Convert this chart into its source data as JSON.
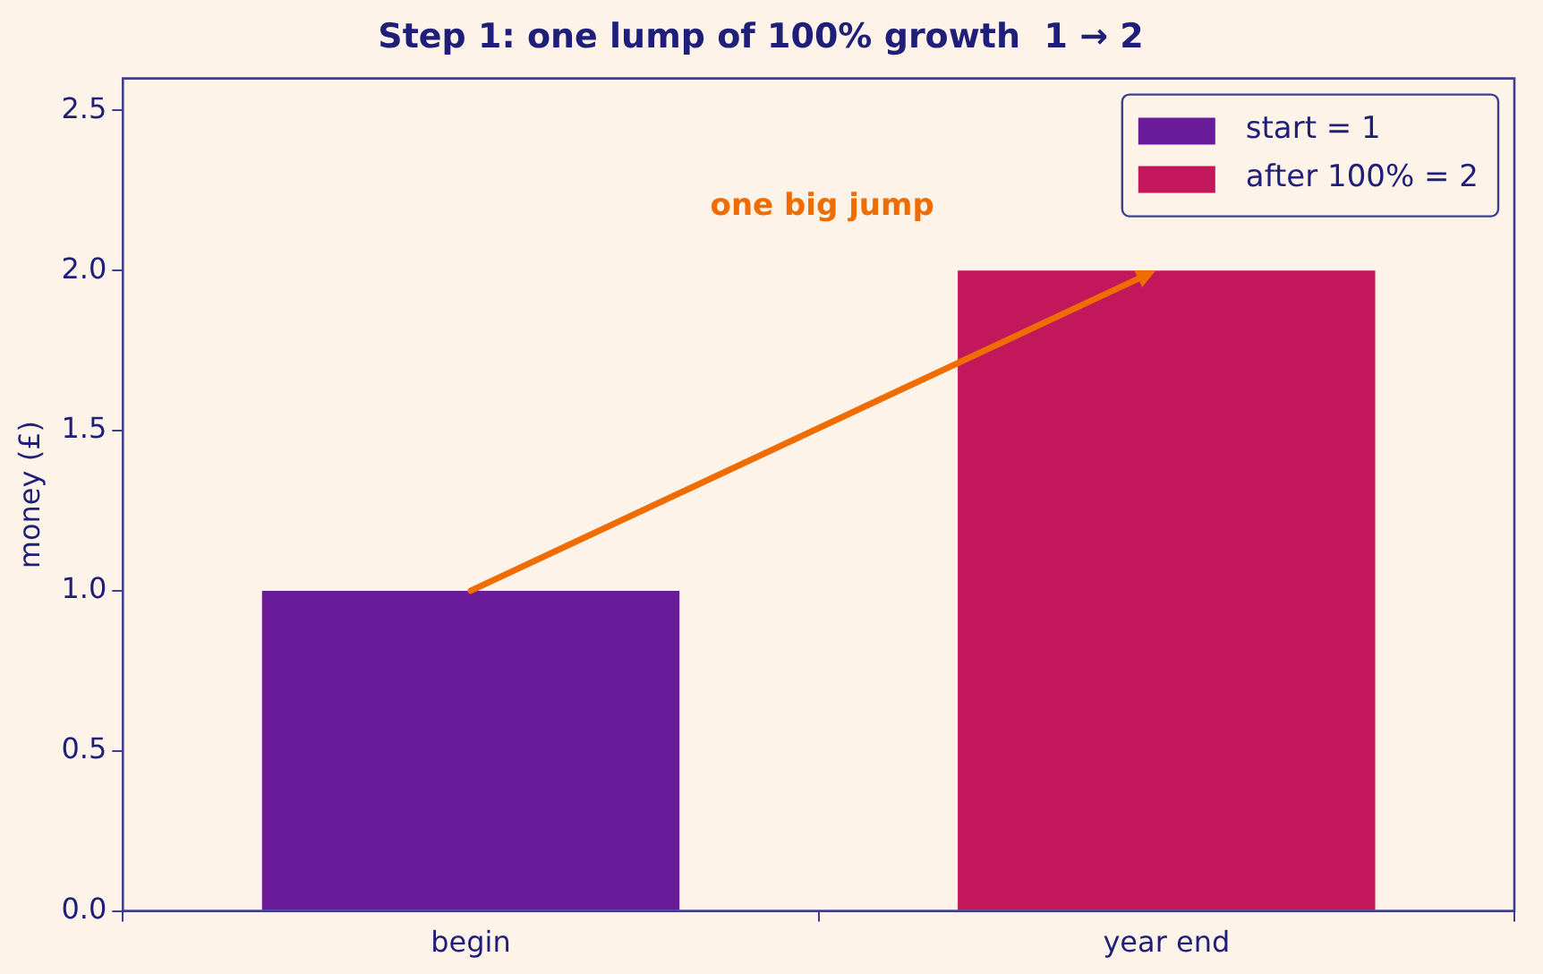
{
  "chart_data": {
    "type": "bar",
    "title": "Step 1: one lump of 100% growth  1 → 2",
    "ylabel": "money (£)",
    "categories": [
      "begin",
      "year end"
    ],
    "series": [
      {
        "name": "start = 1",
        "color": "#6a1b9a",
        "values": [
          1,
          null
        ]
      },
      {
        "name": "after 100% = 2",
        "color": "#c2185b",
        "values": [
          null,
          2
        ]
      }
    ],
    "ylim": [
      0,
      2.6
    ],
    "yticks": [
      {
        "value": 0,
        "label": "0.0"
      },
      {
        "value": 0.5,
        "label": "0.5"
      },
      {
        "value": 1,
        "label": "1.0"
      },
      {
        "value": 1.5,
        "label": "1.5"
      },
      {
        "value": 2,
        "label": "2.0"
      },
      {
        "value": 2.5,
        "label": "2.5"
      }
    ],
    "annotations": [
      "one big jump"
    ],
    "grid": false,
    "legend": "top right"
  }
}
